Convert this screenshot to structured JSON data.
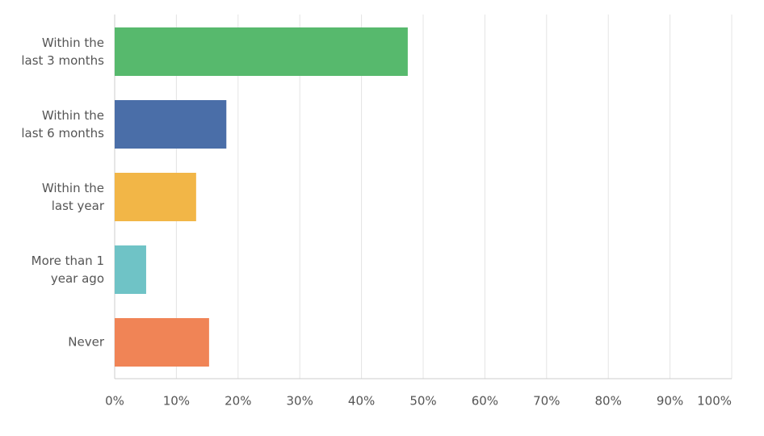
{
  "chart_data": {
    "type": "hbar",
    "categories": [
      "Within the\nlast 3 months",
      "Within the\nlast 6 months",
      "Within the\nlast year",
      "More than 1\nyear ago",
      "Never"
    ],
    "values": [
      47.5,
      18.1,
      13.2,
      5.1,
      15.3
    ],
    "colors": [
      "#57b96d",
      "#4a6ea8",
      "#f2b647",
      "#6fc3c6",
      "#f08456"
    ],
    "xlim": [
      0,
      100
    ],
    "xticks": [
      {
        "value": 0,
        "label": "0%"
      },
      {
        "value": 10,
        "label": "10%"
      },
      {
        "value": 20,
        "label": "20%"
      },
      {
        "value": 30,
        "label": "30%"
      },
      {
        "value": 40,
        "label": "40%"
      },
      {
        "value": 50,
        "label": "50%"
      },
      {
        "value": 60,
        "label": "60%"
      },
      {
        "value": 70,
        "label": "70%"
      },
      {
        "value": 80,
        "label": "80%"
      },
      {
        "value": 90,
        "label": "90%"
      },
      {
        "value": 100,
        "label": "100%"
      }
    ],
    "grid": true
  }
}
